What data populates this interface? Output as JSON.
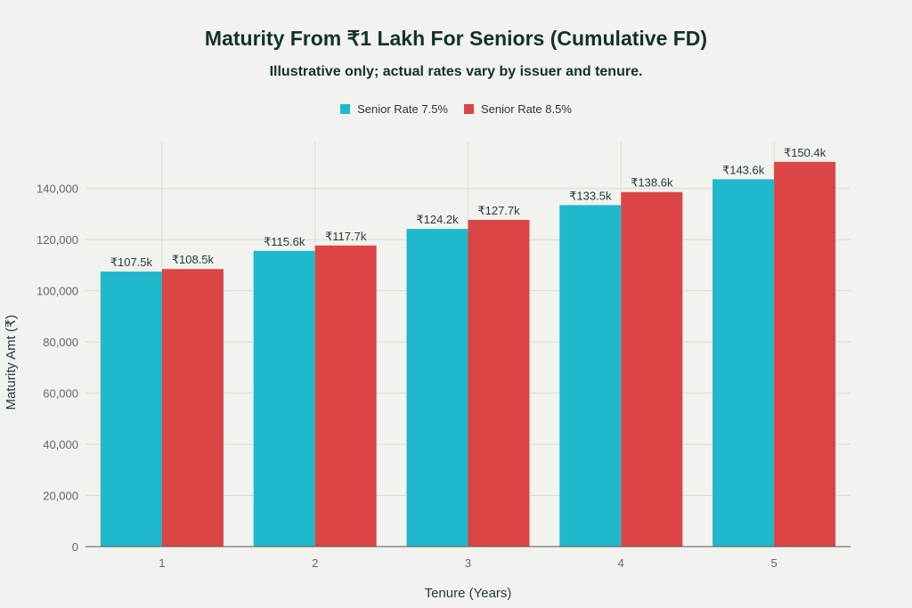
{
  "chart_data": {
    "type": "bar",
    "title": "Maturity From ₹1 Lakh For Seniors (Cumulative FD)",
    "subtitle": "Illustrative only; actual rates vary by issuer and tenure.",
    "xlabel": "Tenure (Years)",
    "ylabel": "Maturity Amt (₹)",
    "categories": [
      "1",
      "2",
      "3",
      "4",
      "5"
    ],
    "series": [
      {
        "name": "Senior Rate 7.5%",
        "color": "#1fb8cd",
        "values": [
          107500,
          115600,
          124200,
          133500,
          143600
        ],
        "labels": [
          "₹107.5k",
          "₹115.6k",
          "₹124.2k",
          "₹133.5k",
          "₹143.6k"
        ]
      },
      {
        "name": "Senior Rate 8.5%",
        "color": "#db4545",
        "values": [
          108500,
          117700,
          127700,
          138600,
          150400
        ],
        "labels": [
          "₹108.5k",
          "₹117.7k",
          "₹127.7k",
          "₹138.6k",
          "₹150.4k"
        ]
      }
    ],
    "yticks": [
      0,
      20000,
      40000,
      60000,
      80000,
      100000,
      120000,
      140000
    ],
    "ytick_labels": [
      "0",
      "20,000",
      "40,000",
      "60,000",
      "80,000",
      "100,000",
      "120,000",
      "140,000"
    ],
    "ylim": [
      0,
      158000
    ],
    "grid": true,
    "legend_position": "top-center"
  }
}
